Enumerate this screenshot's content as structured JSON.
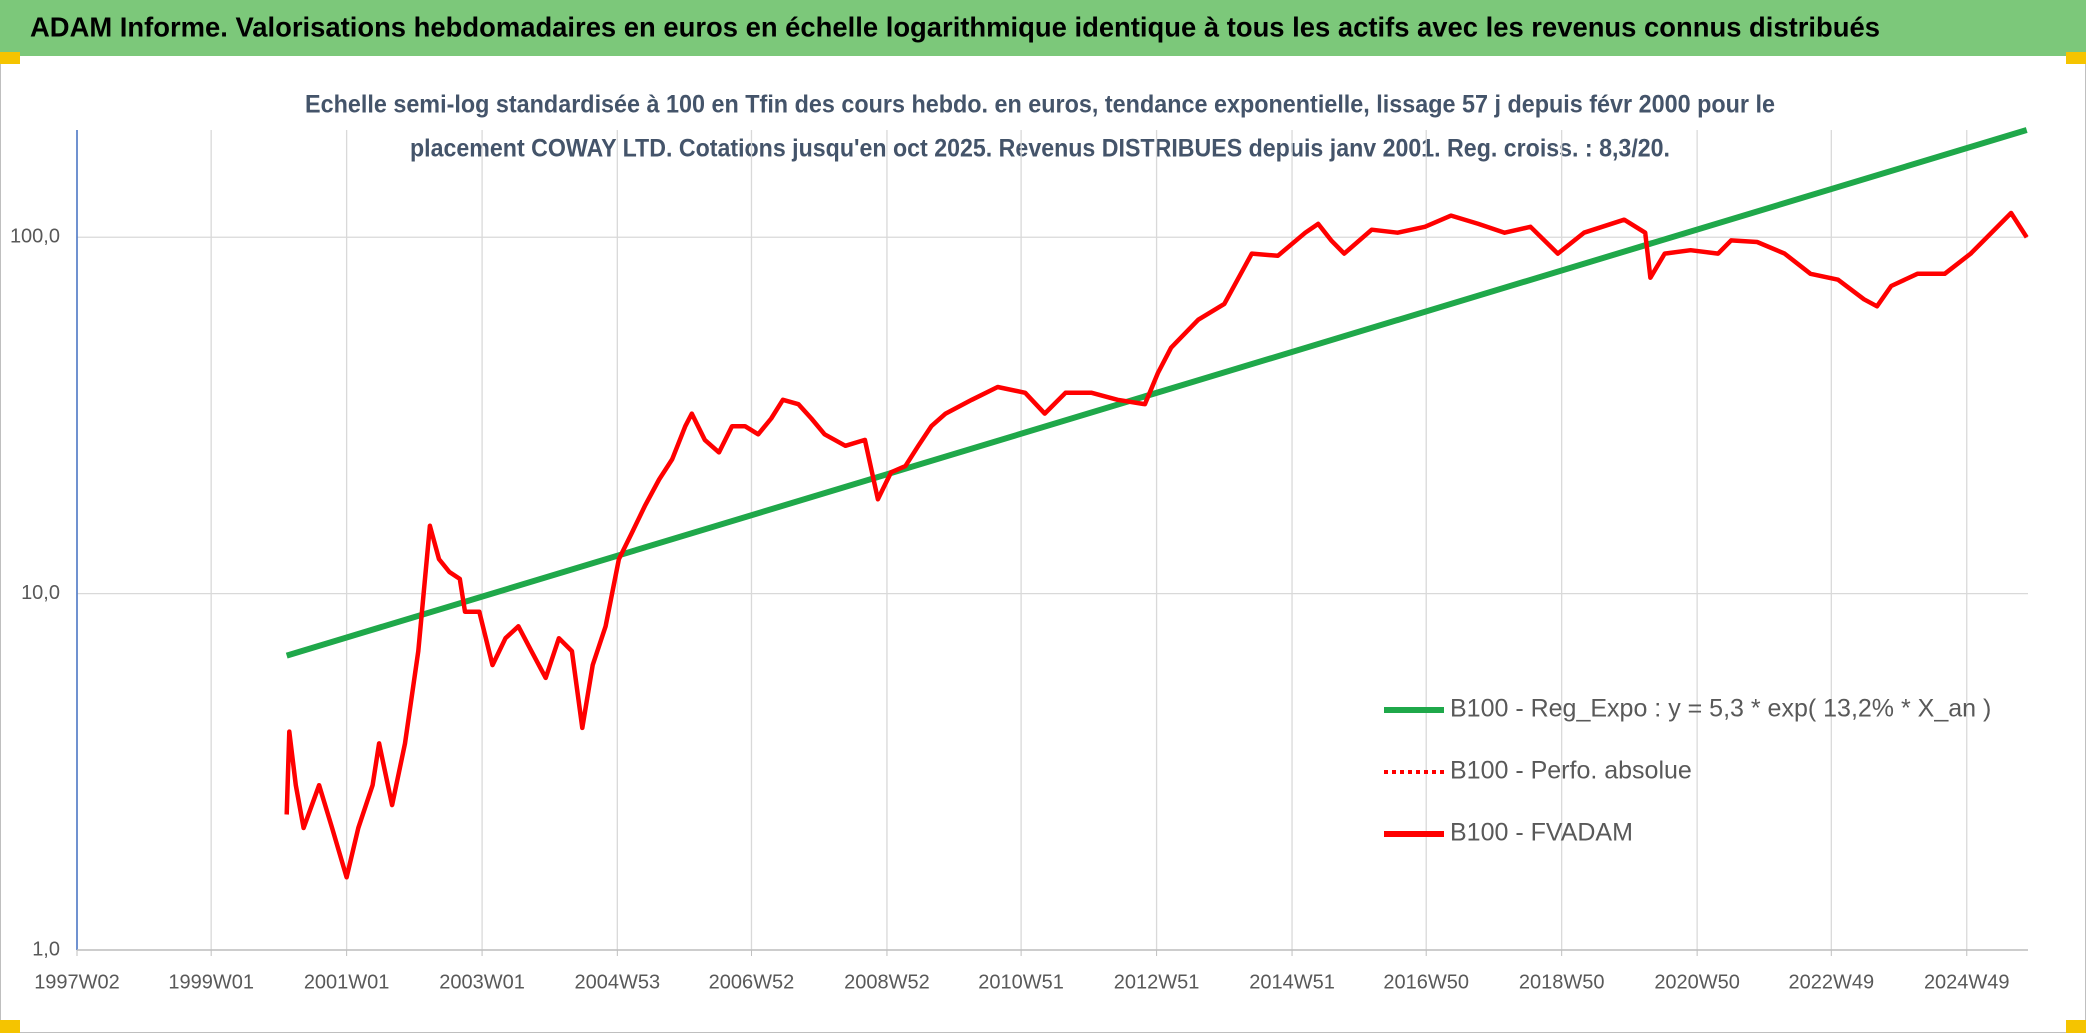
{
  "chart_data": {
    "type": "line",
    "title": "ADAM Informe. Valorisations hebdomadaires en euros en échelle logarithmique identique à tous les actifs avec les revenus connus distribués",
    "subtitle": [
      "Echelle semi-log standardisée à 100 en Tfin des cours hebdo. en euros, tendance exponentielle, lissage 57 j depuis févr 2000 pour le",
      "placement COWAY LTD. Cotations jusqu'en oct 2025. Revenus DISTRIBUES depuis janv 2001. Reg. croiss. : 8,3/20."
    ],
    "log_y": true,
    "grid": true,
    "ylim": [
      1,
      200
    ],
    "yticks": [
      {
        "value": 1,
        "label": "1,0"
      },
      {
        "value": 10,
        "label": "10,0"
      },
      {
        "value": 100,
        "label": "100,0"
      }
    ],
    "xlim": [
      "1997W02",
      "2025W44"
    ],
    "xticks": [
      "1997W02",
      "1999W01",
      "2001W01",
      "2003W01",
      "2004W53",
      "2006W52",
      "2008W52",
      "2010W51",
      "2012W51",
      "2014W51",
      "2016W50",
      "2018W50",
      "2020W50",
      "2022W49",
      "2024W49"
    ],
    "series": [
      {
        "name": "B100 - Reg_Expo : y = 5,3 * exp( 13,2% *  X_an )",
        "color": "#1fa84a",
        "dash": "solid",
        "x": [
          "2000W07",
          "2025W43"
        ],
        "values": [
          6.7,
          200
        ]
      },
      {
        "name": "B100 - Perfo. absolue",
        "color": "#ff0000",
        "dash": "dotted",
        "x": [],
        "values": []
      },
      {
        "name": "B100 - FVADAM",
        "color": "#ff0000",
        "dash": "solid",
        "x": [
          "2000W07",
          "2000W09",
          "2000W14",
          "2000W20",
          "2000W32",
          "2000W42",
          "2001W01",
          "2001W10",
          "2001W21",
          "2001W26",
          "2001W36",
          "2001W46",
          "2002W04",
          "2002W13",
          "2002W20",
          "2002W28",
          "2002W36",
          "2002W40",
          "2002W51",
          "2003W09",
          "2003W19",
          "2003W29",
          "2003W39",
          "2003W50",
          "2004W08",
          "2004W18",
          "2004W26",
          "2004W34",
          "2004W44",
          "2005W02",
          "2005W12",
          "2005W22",
          "2005W33",
          "2005W43",
          "2006W01",
          "2006W06",
          "2006W16",
          "2006W27",
          "2006W37",
          "2006W47",
          "2007W05",
          "2007W15",
          "2007W24",
          "2007W36",
          "2007W46",
          "2008W04",
          "2008W20",
          "2008W35",
          "2008W45",
          "2009W03",
          "2009W14",
          "2009W24",
          "2009W34",
          "2009W45",
          "2010W13",
          "2010W33",
          "2011W02",
          "2011W17",
          "2011W33",
          "2012W01",
          "2012W21",
          "2012W42",
          "2012W52",
          "2013W10",
          "2013W31",
          "2013W51",
          "2014W20",
          "2014W40",
          "2015W09",
          "2015W19",
          "2015W29",
          "2015W39",
          "2016W08",
          "2016W28",
          "2016W49",
          "2017W17",
          "2017W38",
          "2018W06",
          "2018W26",
          "2018W47",
          "2019W15",
          "2019W46",
          "2020W10",
          "2020W14",
          "2020W25",
          "2020W45",
          "2021W14",
          "2021W24",
          "2021W44",
          "2022W13",
          "2022W33",
          "2023W02",
          "2023W22",
          "2023W32",
          "2023W43",
          "2024W11",
          "2024W32",
          "2024W52",
          "2025W10",
          "2025W31",
          "2025W43"
        ],
        "values": [
          2.4,
          4.1,
          2.9,
          2.2,
          2.9,
          2.2,
          1.6,
          2.2,
          2.9,
          3.8,
          2.55,
          3.8,
          6.9,
          15.5,
          12.5,
          11.5,
          11,
          8.9,
          8.9,
          6.3,
          7.5,
          8.1,
          6.9,
          5.8,
          7.5,
          6.9,
          4.2,
          6.3,
          8.1,
          12.5,
          14.8,
          17.6,
          20.9,
          23.8,
          29.5,
          32,
          27,
          24.9,
          29.5,
          29.5,
          28,
          31,
          35,
          34,
          31,
          28,
          26,
          27,
          18.4,
          21.9,
          22.8,
          26,
          29.5,
          32,
          35,
          38,
          36.6,
          32,
          36.6,
          36.6,
          35,
          34,
          41.6,
          49,
          58.7,
          65,
          90,
          88.7,
          103,
          109,
          98,
          90,
          105,
          103,
          107,
          115,
          109,
          103,
          107,
          90,
          103,
          112,
          103,
          77,
          90,
          92,
          90,
          98,
          97,
          90,
          79,
          76,
          67,
          64,
          73,
          79,
          79,
          90,
          98,
          117,
          100
        ]
      }
    ]
  }
}
